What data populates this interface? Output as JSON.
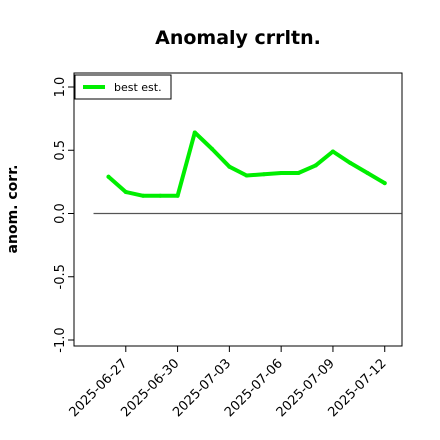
{
  "chart_data": {
    "type": "line",
    "title": "Anomaly crrltn.",
    "xlabel": "",
    "ylabel": "anom. corr.",
    "x": [
      "2025-06-26",
      "2025-06-27",
      "2025-06-28",
      "2025-06-29",
      "2025-06-30",
      "2025-07-01",
      "2025-07-02",
      "2025-07-03",
      "2025-07-04",
      "2025-07-05",
      "2025-07-06",
      "2025-07-07",
      "2025-07-08",
      "2025-07-09",
      "2025-07-10",
      "2025-07-11",
      "2025-07-12"
    ],
    "xticks": [
      "2025-06-27",
      "2025-06-30",
      "2025-07-03",
      "2025-07-06",
      "2025-07-09",
      "2025-07-12"
    ],
    "xlim": [
      "2025-06-24",
      "2025-07-13"
    ],
    "ylim": [
      -1.0,
      1.0
    ],
    "yticks": [
      "-1.0",
      "-0.5",
      "0.0",
      "0.5",
      "1.0"
    ],
    "ytick_values": [
      -1.0,
      -0.5,
      0.0,
      0.5,
      1.0
    ],
    "series": [
      {
        "name": "best est.",
        "color": "#00ee00",
        "values": [
          0.29,
          0.17,
          0.14,
          0.14,
          0.14,
          0.64,
          0.51,
          0.37,
          0.3,
          0.31,
          0.32,
          0.32,
          0.38,
          0.49,
          0.4,
          0.32,
          0.24
        ]
      }
    ],
    "reference_line": {
      "y": 0.0,
      "color": "#555555"
    },
    "legend": "top-left",
    "grid": false
  }
}
